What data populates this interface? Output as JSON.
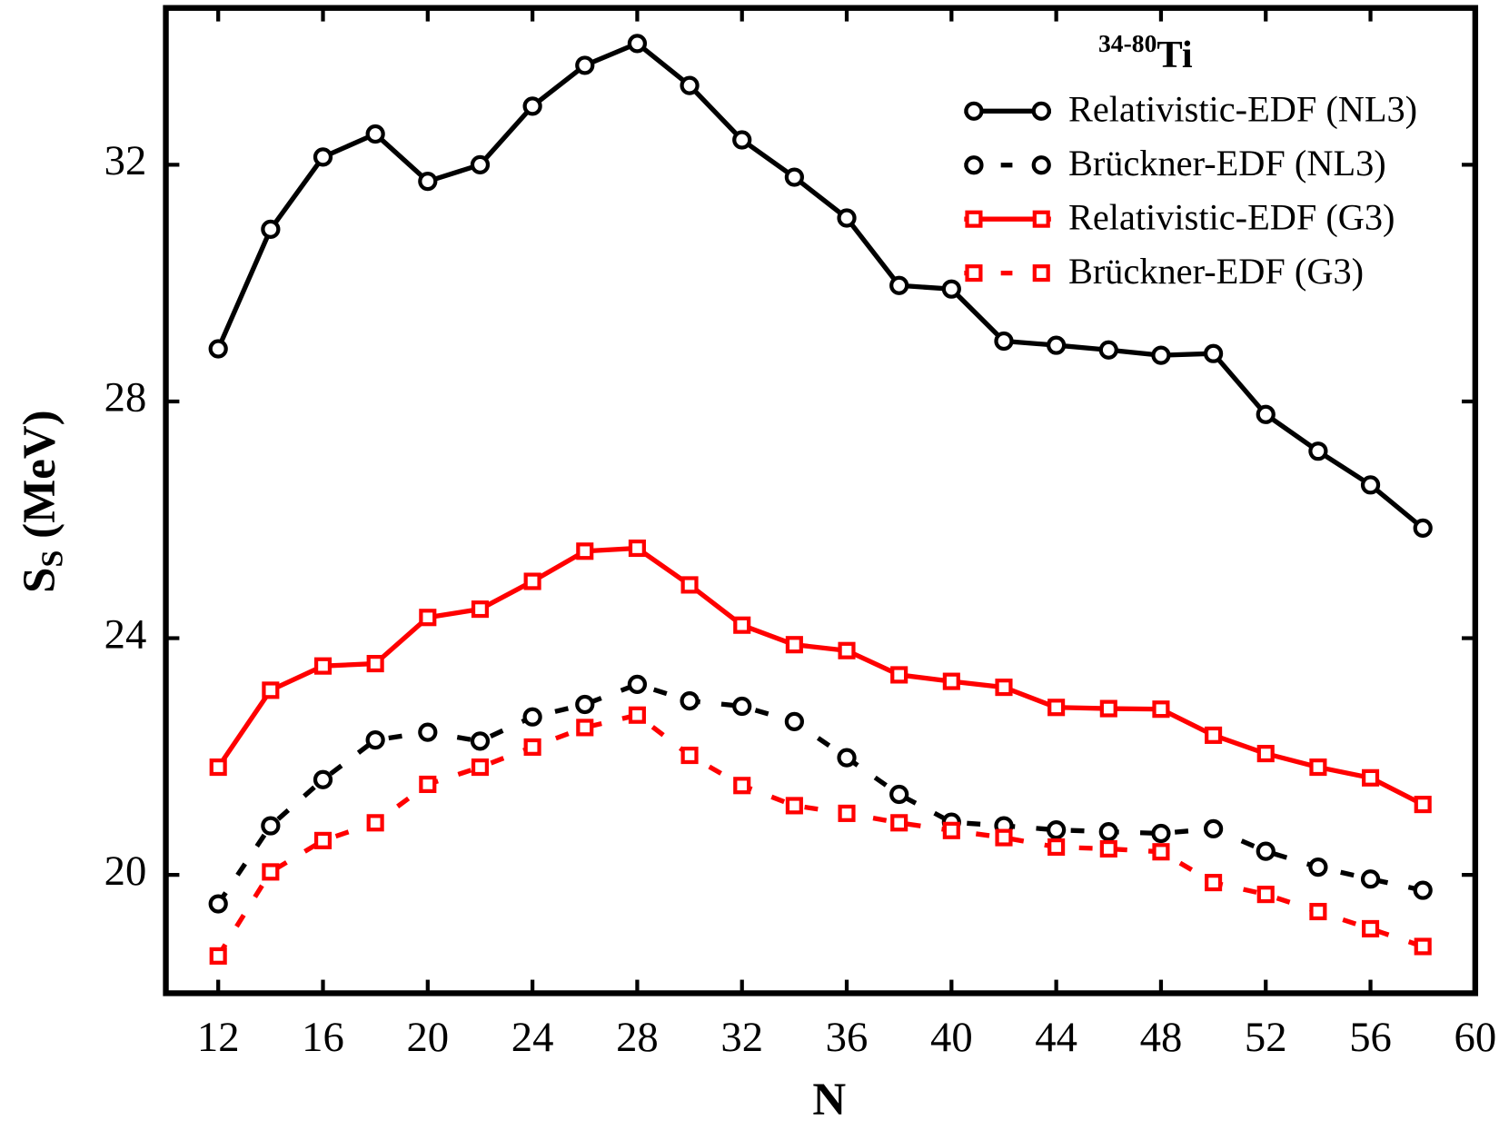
{
  "chart_data": {
    "type": "line",
    "xlabel": "N",
    "ylabel": "S",
    "ylabel_sub": "S",
    "ylabel_unit": "(MeV)",
    "annotation": {
      "sup": "34-80",
      "text": "Ti"
    },
    "x": [
      12,
      14,
      16,
      18,
      20,
      22,
      24,
      26,
      28,
      30,
      32,
      34,
      36,
      38,
      40,
      42,
      44,
      46,
      48,
      50,
      52,
      54,
      56,
      58
    ],
    "xlim": [
      10,
      60
    ],
    "xticks": [
      12,
      16,
      20,
      24,
      28,
      32,
      36,
      40,
      44,
      48,
      52,
      56,
      60
    ],
    "ylim": [
      18,
      34.65
    ],
    "yticks": [
      20,
      24,
      28,
      32
    ],
    "legend": "upper right",
    "series": [
      {
        "name": "Relativistic-EDF (NL3)",
        "color": "#000000",
        "marker": "circle",
        "dashed": false,
        "values": [
          28.89,
          30.91,
          32.13,
          32.52,
          31.72,
          32.0,
          32.99,
          33.68,
          34.05,
          33.34,
          32.42,
          31.79,
          31.1,
          29.96,
          29.9,
          29.02,
          28.95,
          28.87,
          28.78,
          28.81,
          27.78,
          27.16,
          26.59,
          25.86
        ]
      },
      {
        "name": "Brückner-EDF (NL3)",
        "color": "#000000",
        "marker": "circle",
        "dashed": true,
        "values": [
          19.51,
          20.83,
          21.61,
          22.28,
          22.41,
          22.26,
          22.67,
          22.88,
          23.22,
          22.94,
          22.85,
          22.59,
          21.98,
          21.36,
          20.89,
          20.83,
          20.76,
          20.73,
          20.7,
          20.78,
          20.4,
          20.13,
          19.93,
          19.74
        ]
      },
      {
        "name": "Relativistic-EDF (G3)",
        "color": "#ff0000",
        "marker": "square",
        "dashed": false,
        "values": [
          21.82,
          23.12,
          23.53,
          23.57,
          24.35,
          24.49,
          24.96,
          25.47,
          25.52,
          24.9,
          24.22,
          23.89,
          23.79,
          23.38,
          23.27,
          23.17,
          22.83,
          22.81,
          22.8,
          22.36,
          22.05,
          21.82,
          21.64,
          21.19
        ]
      },
      {
        "name": "Brückner-EDF (G3)",
        "color": "#ff0000",
        "marker": "square",
        "dashed": true,
        "values": [
          18.63,
          20.05,
          20.58,
          20.88,
          21.53,
          21.82,
          22.16,
          22.49,
          22.7,
          22.02,
          21.51,
          21.17,
          21.04,
          20.88,
          20.75,
          20.63,
          20.47,
          20.44,
          20.39,
          19.87,
          19.67,
          19.38,
          19.09,
          18.79
        ]
      }
    ]
  }
}
